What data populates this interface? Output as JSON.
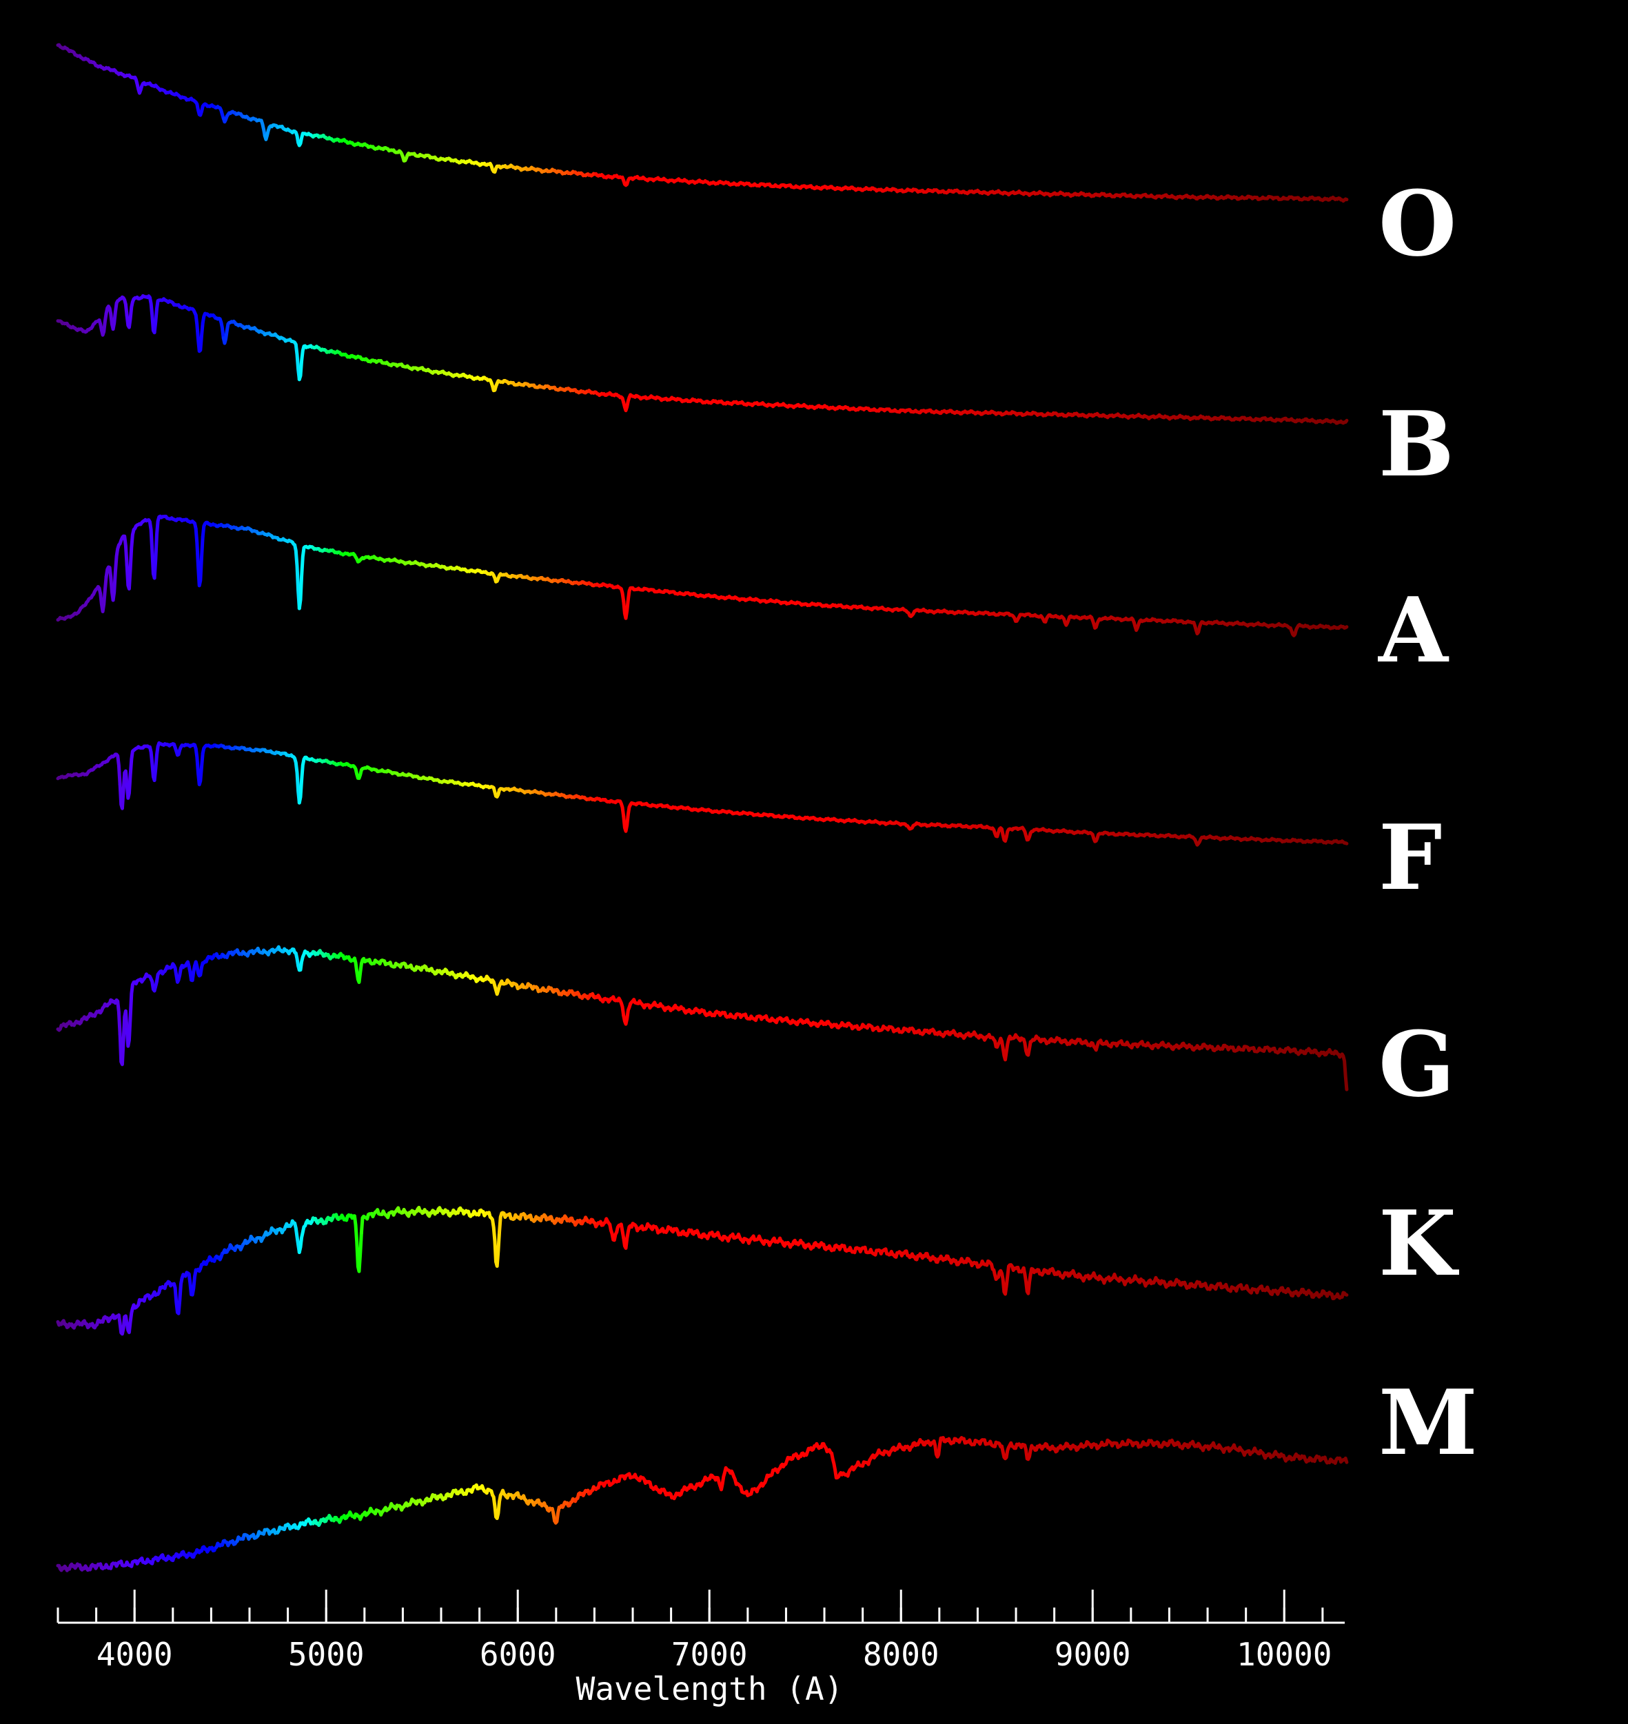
{
  "chart_data": {
    "type": "line",
    "xlabel": "Wavelength (A)",
    "xlim": [
      3600,
      10330
    ],
    "x_ticks": [
      4000,
      5000,
      6000,
      7000,
      8000,
      9000,
      10000
    ],
    "x_tick_labels": [
      "4000",
      "5000",
      "6000",
      "7000",
      "8000",
      "9000",
      "10000"
    ],
    "minor_tick_step": 200,
    "y_axis_shown": false,
    "grid": false,
    "legend": "none",
    "line_color_mode": "wavelength-rainbow",
    "series": [
      {
        "name": "O",
        "x": [
          3600,
          3800,
          4000,
          4200,
          4500,
          4800,
          5200,
          5600,
          6000,
          6500,
          7000,
          7500,
          8000,
          8500,
          9000,
          9500,
          10000,
          10330
        ],
        "values": [
          100,
          91,
          85,
          78,
          70,
          62,
          55,
          49,
          45,
          41,
          38.5,
          36.5,
          35,
          34,
          33,
          32,
          31.5,
          31
        ],
        "absorption_lines": [
          [
            4026,
            5
          ],
          [
            4340,
            6
          ],
          [
            4471,
            5
          ],
          [
            4686,
            7
          ],
          [
            4861,
            6
          ],
          [
            5411,
            4
          ],
          [
            5876,
            3
          ],
          [
            6563,
            3
          ]
        ]
      },
      {
        "name": "B",
        "x": [
          3600,
          3750,
          3900,
          4100,
          4300,
          4600,
          4900,
          5200,
          5600,
          6000,
          6500,
          7000,
          7500,
          8000,
          8500,
          9000,
          9500,
          10000,
          10330
        ],
        "values": [
          75,
          70,
          85,
          86,
          80,
          72,
          64,
          58,
          52,
          47,
          42,
          39,
          37,
          35,
          34,
          33,
          32,
          31,
          30
        ],
        "absorption_lines": [
          [
            3835,
            10
          ],
          [
            3889,
            12
          ],
          [
            3970,
            14
          ],
          [
            4102,
            16
          ],
          [
            4340,
            18
          ],
          [
            4471,
            10
          ],
          [
            4861,
            16
          ],
          [
            5876,
            4
          ],
          [
            6563,
            6
          ]
        ]
      },
      {
        "name": "A",
        "x": [
          3600,
          3700,
          3800,
          3850,
          3950,
          4100,
          4300,
          4600,
          4900,
          5200,
          5600,
          6000,
          6500,
          7000,
          7500,
          8000,
          8500,
          9000,
          9500,
          10000,
          10330
        ],
        "values": [
          30,
          33,
          45,
          55,
          74,
          83,
          80,
          76,
          67,
          62,
          57,
          52,
          47,
          42,
          38,
          35,
          33,
          31,
          29,
          27,
          26
        ],
        "absorption_lines": [
          [
            3835,
            18
          ],
          [
            3889,
            22
          ],
          [
            3970,
            30
          ],
          [
            4102,
            32
          ],
          [
            4340,
            33
          ],
          [
            4861,
            32
          ],
          [
            5170,
            3
          ],
          [
            5890,
            4
          ],
          [
            6563,
            16
          ],
          [
            8050,
            3
          ],
          [
            8600,
            3
          ],
          [
            8750,
            3
          ],
          [
            8863,
            4
          ],
          [
            9015,
            5
          ],
          [
            9229,
            5
          ],
          [
            9546,
            6
          ],
          [
            10049,
            5
          ]
        ]
      },
      {
        "name": "F",
        "x": [
          3600,
          3750,
          3900,
          4100,
          4400,
          4700,
          4900,
          5200,
          5600,
          6000,
          6500,
          7000,
          7500,
          8000,
          8500,
          9000,
          9500,
          10000,
          10330
        ],
        "values": [
          60,
          62,
          72,
          78,
          77,
          74,
          70,
          65,
          58,
          53,
          47,
          42,
          38,
          35,
          33,
          30,
          28,
          26,
          25
        ],
        "absorption_lines": [
          [
            3934,
            30
          ],
          [
            3968,
            25
          ],
          [
            4102,
            20
          ],
          [
            4227,
            6
          ],
          [
            4340,
            22
          ],
          [
            4861,
            25
          ],
          [
            5170,
            6
          ],
          [
            5890,
            5
          ],
          [
            6563,
            16
          ],
          [
            8050,
            3
          ],
          [
            8498,
            5
          ],
          [
            8542,
            7
          ],
          [
            8662,
            6
          ],
          [
            9015,
            4
          ],
          [
            9546,
            4
          ]
        ]
      },
      {
        "name": "G",
        "x": [
          3600,
          3750,
          3900,
          4000,
          4200,
          4500,
          4800,
          5100,
          5500,
          6000,
          6500,
          7000,
          7500,
          8000,
          8500,
          9000,
          9500,
          10000,
          10330
        ],
        "values": [
          40,
          45,
          55,
          65,
          73,
          80,
          82,
          78,
          72,
          63,
          55,
          48,
          43,
          39,
          35,
          32,
          30,
          28,
          26
        ],
        "absorption_lines": [
          [
            3934,
            38
          ],
          [
            3968,
            32
          ],
          [
            4102,
            10
          ],
          [
            4227,
            8
          ],
          [
            4300,
            10
          ],
          [
            4340,
            8
          ],
          [
            4861,
            12
          ],
          [
            5170,
            12
          ],
          [
            5890,
            5
          ],
          [
            6563,
            12
          ],
          [
            8498,
            6
          ],
          [
            8542,
            10
          ],
          [
            8662,
            8
          ],
          [
            9015,
            3
          ],
          [
            10330,
            20
          ]
        ]
      },
      {
        "name": "K",
        "x": [
          3600,
          3800,
          4000,
          4200,
          4500,
          4800,
          5100,
          5400,
          5700,
          6000,
          6500,
          7000,
          7500,
          8000,
          8500,
          9000,
          9500,
          10000,
          10330
        ],
        "values": [
          20,
          20,
          28,
          38,
          52,
          62,
          66,
          68,
          68,
          66,
          63,
          58,
          54,
          50,
          45,
          40,
          37,
          34,
          32
        ],
        "absorption_lines": [
          [
            3934,
            10
          ],
          [
            3968,
            10
          ],
          [
            4227,
            14
          ],
          [
            4300,
            10
          ],
          [
            4861,
            12
          ],
          [
            5170,
            24
          ],
          [
            5890,
            22
          ],
          [
            6563,
            10
          ],
          [
            6500,
            8
          ],
          [
            8498,
            6
          ],
          [
            8542,
            12
          ],
          [
            8662,
            10
          ]
        ]
      },
      {
        "name": "M",
        "x": [
          3600,
          3800,
          4000,
          4300,
          4600,
          4900,
          5200,
          5500,
          5800,
          6000,
          6200,
          6400,
          6600,
          6800,
          7000,
          7100,
          7200,
          7400,
          7600,
          7700,
          7900,
          8200,
          8500,
          8800,
          9100,
          9400,
          9700,
          10000,
          10330
        ],
        "values": [
          8,
          8,
          10,
          14,
          22,
          28,
          32,
          38,
          44,
          40,
          34,
          44,
          50,
          40,
          48,
          52,
          40,
          56,
          64,
          50,
          60,
          66,
          64,
          62,
          64,
          64,
          62,
          58,
          56
        ],
        "absorption_lines": [
          [
            5890,
            14
          ],
          [
            6200,
            6
          ],
          [
            7060,
            6
          ],
          [
            7665,
            8
          ],
          [
            8190,
            8
          ],
          [
            8542,
            8
          ],
          [
            8662,
            6
          ]
        ]
      }
    ]
  }
}
